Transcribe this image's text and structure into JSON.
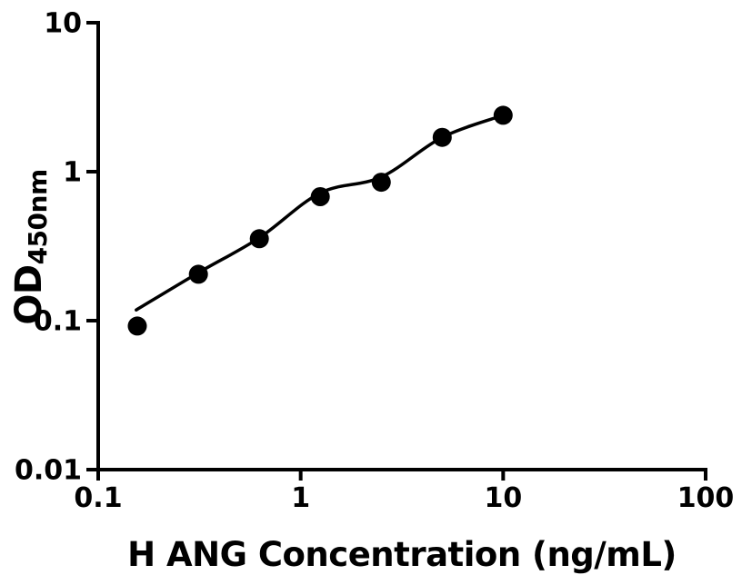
{
  "figure": {
    "background_color": "#ffffff",
    "foreground_color": "#000000"
  },
  "chart_data": {
    "type": "scatter",
    "title": "",
    "xlabel": "H ANG Concentration (ng/mL)",
    "ylabel_main": "OD",
    "ylabel_sub": "450nm",
    "x_scale": "log",
    "y_scale": "log",
    "xlim": [
      0.1,
      100
    ],
    "ylim": [
      0.01,
      10
    ],
    "x_ticks": [
      0.1,
      1,
      10,
      100
    ],
    "x_tick_labels": [
      "0.1",
      "1",
      "10",
      "100"
    ],
    "y_ticks": [
      0.01,
      0.1,
      1,
      10
    ],
    "y_tick_labels": [
      "0.01",
      "0.1",
      "1",
      "10"
    ],
    "grid": false,
    "legend": "none",
    "series": [
      {
        "name": "standard-points",
        "marker": "filled-circle",
        "color": "#000000",
        "x": [
          0.156,
          0.3125,
          0.625,
          1.25,
          2.5,
          5,
          10
        ],
        "y": [
          0.092,
          0.205,
          0.355,
          0.68,
          0.85,
          1.7,
          2.39
        ]
      }
    ],
    "fit_curve": {
      "name": "four-parameter-logistic-fit",
      "color": "#000000",
      "points": [
        [
          0.154,
          0.118
        ],
        [
          0.3125,
          0.21
        ],
        [
          0.625,
          0.36
        ],
        [
          1.25,
          0.72
        ],
        [
          2.5,
          0.92
        ],
        [
          5,
          1.7
        ],
        [
          10,
          2.39
        ]
      ]
    }
  }
}
